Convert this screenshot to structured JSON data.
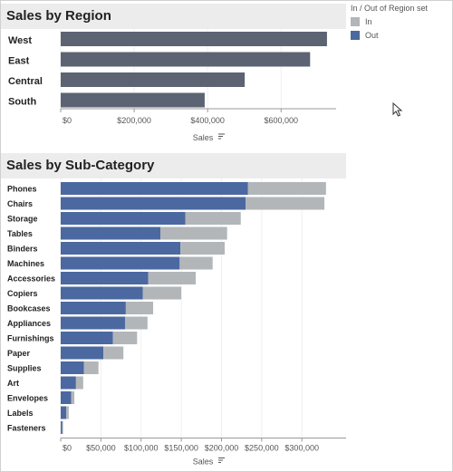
{
  "colors": {
    "region_bar": "#5c6373",
    "in": "#b3b6b9",
    "out": "#4b68a0",
    "header_bg": "#ececec"
  },
  "legend": {
    "title": "In / Out of Region set",
    "items": [
      {
        "label": "In",
        "color": "#b3b6b9"
      },
      {
        "label": "Out",
        "color": "#4b68a0"
      }
    ]
  },
  "region_chart": {
    "title": "Sales by Region",
    "xlabel": "Sales"
  },
  "subcat_chart": {
    "title": "Sales by Sub-Category",
    "xlabel": "Sales"
  },
  "chart_data": [
    {
      "type": "bar",
      "orientation": "horizontal",
      "title": "Sales by Region",
      "xlabel": "Sales",
      "categories": [
        "West",
        "East",
        "Central",
        "South"
      ],
      "values": [
        725000,
        679000,
        501000,
        392000
      ],
      "xlim": [
        0,
        740000
      ],
      "ticks": [
        0,
        200000,
        400000,
        600000
      ],
      "tick_labels": [
        "$0",
        "$200,000",
        "$400,000",
        "$600,000"
      ]
    },
    {
      "type": "bar",
      "orientation": "horizontal",
      "stacked": true,
      "title": "Sales by Sub-Category",
      "xlabel": "Sales",
      "categories": [
        "Phones",
        "Chairs",
        "Storage",
        "Tables",
        "Binders",
        "Machines",
        "Accessories",
        "Copiers",
        "Bookcases",
        "Appliances",
        "Furnishings",
        "Paper",
        "Supplies",
        "Art",
        "Envelopes",
        "Labels",
        "Fasteners"
      ],
      "series": [
        {
          "name": "Out",
          "values": [
            233000,
            230000,
            155000,
            124000,
            149000,
            148000,
            109000,
            102000,
            81000,
            80000,
            65000,
            53000,
            29000,
            19000,
            13000,
            7000,
            2000
          ]
        },
        {
          "name": "In",
          "values": [
            97000,
            98000,
            69000,
            83000,
            55000,
            41000,
            59000,
            48000,
            34000,
            28000,
            30000,
            25000,
            18000,
            9000,
            4000,
            3000,
            1000
          ]
        }
      ],
      "xlim": [
        0,
        355000
      ],
      "ticks": [
        0,
        50000,
        100000,
        150000,
        200000,
        250000,
        300000
      ],
      "tick_labels": [
        "$0",
        "$50,000",
        "$100,000",
        "$150,000",
        "$200,000",
        "$250,000",
        "$300,000"
      ]
    }
  ]
}
